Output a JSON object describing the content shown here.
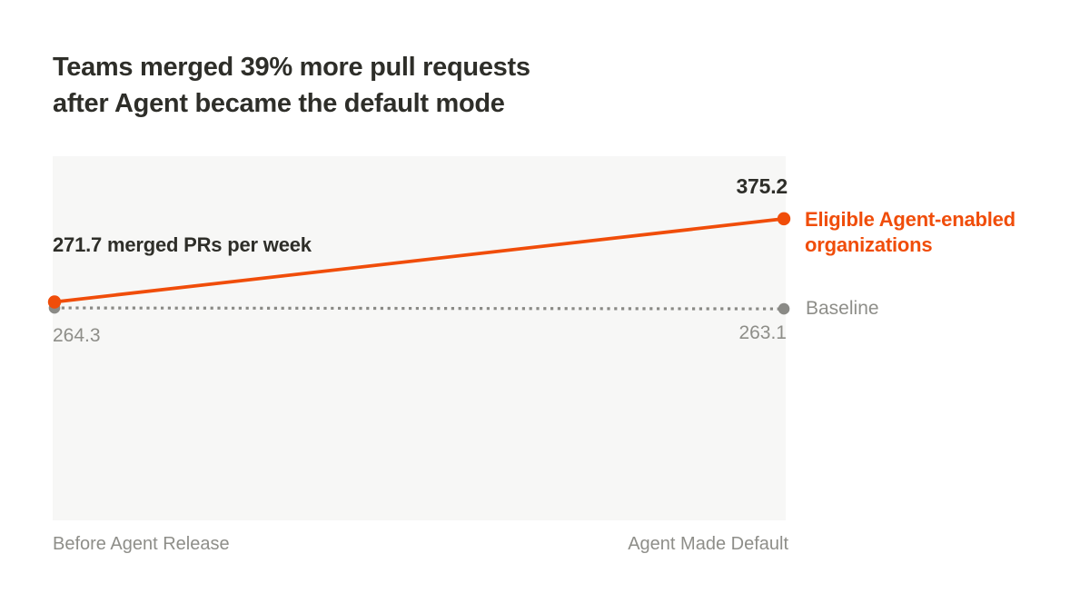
{
  "title": {
    "line1": "Teams merged 39% more pull requests",
    "line2": "after Agent became the default mode"
  },
  "chart_data": {
    "type": "line",
    "subtype": "slope",
    "title": "Teams merged 39% more pull requests after Agent became the default mode",
    "categories": [
      "Before Agent Release",
      "Agent Made Default"
    ],
    "series": [
      {
        "name": "Eligible Agent-enabled organizations",
        "values": [
          271.7,
          375.2
        ],
        "color": "#f04d0a",
        "style": "solid"
      },
      {
        "name": "Baseline",
        "values": [
          264.3,
          263.1
        ],
        "color": "#8a8a86",
        "style": "dotted"
      }
    ],
    "ylim": [
      0,
      453
    ],
    "grid": false,
    "legend_position": "right",
    "annotations": {
      "left_point_label": "271.7 merged PRs per week",
      "agent_end_value": "375.2",
      "baseline_start_value": "264.3",
      "baseline_end_value": "263.1"
    },
    "ylabel": "merged PRs per week",
    "xlabel": ""
  },
  "colors": {
    "accent": "#f04d0a",
    "muted_line": "#8a8a86",
    "muted_text": "#8e8e89",
    "ink": "#2e2e29",
    "panel_bg": "#f7f7f6"
  }
}
